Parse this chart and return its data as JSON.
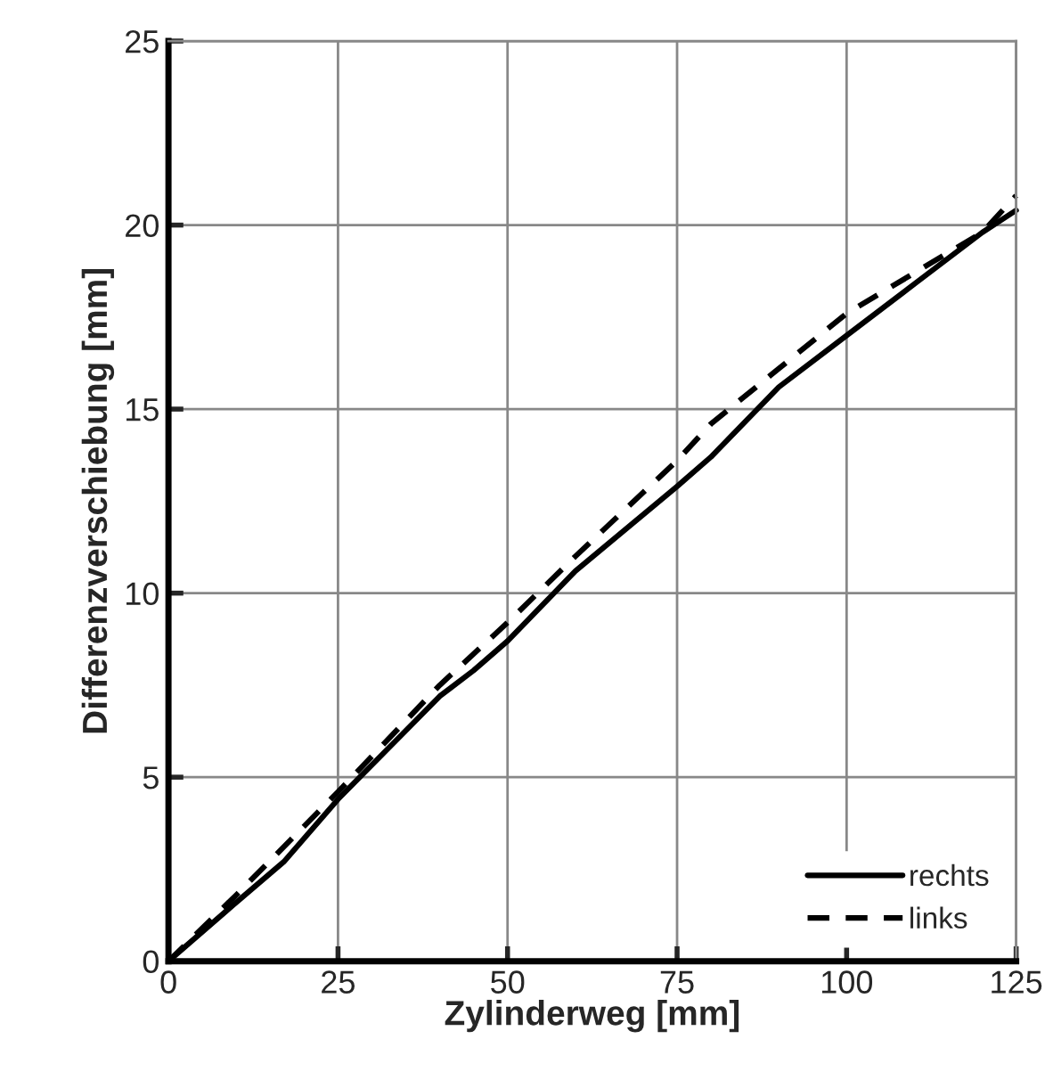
{
  "chart_data": {
    "type": "line",
    "xlabel": "Zylinderweg [mm]",
    "ylabel": "Differenzverschiebung [mm]",
    "xlim": [
      0,
      125
    ],
    "xticks": [
      0,
      25,
      50,
      75,
      100,
      125
    ],
    "ylim": [
      0,
      25
    ],
    "yticks": [
      0,
      5,
      10,
      15,
      20,
      25
    ],
    "grid": true,
    "legend": "bottom right",
    "series": [
      {
        "name": "rechts",
        "color": "#000000",
        "line_style": "solid",
        "x": [
          0,
          10,
          17,
          25,
          40,
          45,
          50,
          60,
          75,
          80,
          90,
          100,
          110,
          120,
          125
        ],
        "values": [
          0,
          1.6,
          2.7,
          4.4,
          7.2,
          7.9,
          8.7,
          10.6,
          12.9,
          13.7,
          15.6,
          17.0,
          18.4,
          19.8,
          20.4
        ]
      },
      {
        "name": "links",
        "color": "#000000",
        "line_style": "dashed",
        "x": [
          0,
          10,
          25,
          40,
          50,
          60,
          75,
          80,
          90,
          100,
          110,
          120,
          125
        ],
        "values": [
          0,
          1.8,
          4.6,
          7.5,
          9.2,
          11.0,
          13.6,
          14.6,
          16.1,
          17.6,
          18.7,
          19.8,
          20.8
        ]
      }
    ]
  }
}
